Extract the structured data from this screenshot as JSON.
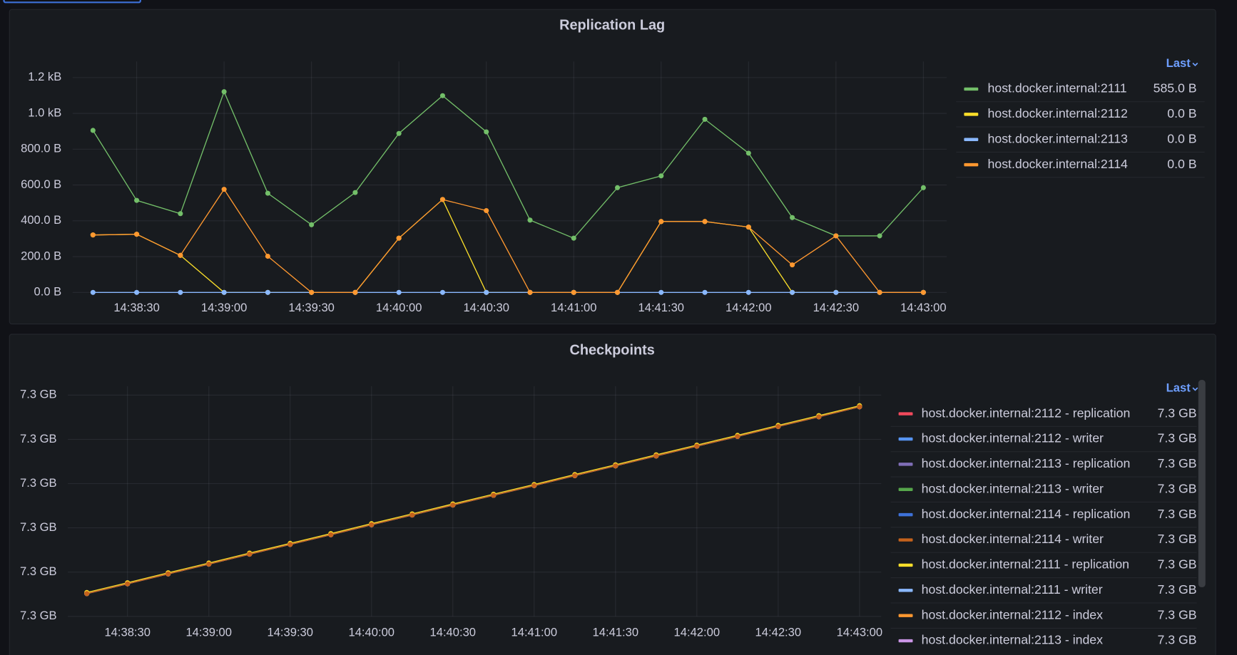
{
  "chart_data": [
    {
      "type": "line",
      "title": "Replication Lag",
      "legend_title": "Last",
      "grid": true,
      "x": [
        "14:38:15",
        "14:38:30",
        "14:38:45",
        "14:39:00",
        "14:39:15",
        "14:39:30",
        "14:39:45",
        "14:40:00",
        "14:40:15",
        "14:40:30",
        "14:40:45",
        "14:41:00",
        "14:41:15",
        "14:41:30",
        "14:41:45",
        "14:42:00",
        "14:42:15",
        "14:42:30",
        "14:42:45",
        "14:43:00"
      ],
      "xlim": [
        "14:38:08",
        "14:43:08"
      ],
      "xticks": [
        "14:38:30",
        "14:39:00",
        "14:39:30",
        "14:40:00",
        "14:40:30",
        "14:41:00",
        "14:41:30",
        "14:42:00",
        "14:42:30",
        "14:43:00"
      ],
      "ylim": [
        0,
        1290
      ],
      "yticks": [
        {
          "value": 0,
          "label": "0.0 B"
        },
        {
          "value": 200,
          "label": "200.0 B"
        },
        {
          "value": 400,
          "label": "400.0 B"
        },
        {
          "value": 600,
          "label": "600.0 B"
        },
        {
          "value": 800,
          "label": "800.0 B"
        },
        {
          "value": 1000,
          "label": "1.0 kB"
        },
        {
          "value": 1200,
          "label": "1.2 kB"
        }
      ],
      "series": [
        {
          "name": "host.docker.internal:2111",
          "color": "#73bf69",
          "legend_value": "585.0 B",
          "values": [
            905,
            514,
            440,
            1121,
            554,
            378,
            558,
            888,
            1099,
            897,
            404,
            303,
            585,
            651,
            967,
            778,
            418,
            316,
            316,
            585
          ]
        },
        {
          "name": "host.docker.internal:2112",
          "color": "#fade2a",
          "legend_value": "0.0 B",
          "values": [
            321,
            325,
            207,
            0,
            0,
            0,
            0,
            303,
            519,
            0,
            0,
            0,
            0,
            396,
            396,
            365,
            0,
            0,
            0,
            0
          ]
        },
        {
          "name": "host.docker.internal:2113",
          "color": "#8ab8ff",
          "legend_value": "0.0 B",
          "values": [
            0,
            0,
            0,
            0,
            0,
            0,
            0,
            0,
            0,
            0,
            0,
            0,
            0,
            0,
            0,
            0,
            0,
            0,
            0,
            0
          ]
        },
        {
          "name": "host.docker.internal:2114",
          "color": "#ff9830",
          "legend_value": "0.0 B",
          "values": [
            321,
            325,
            207,
            576,
            202,
            0,
            0,
            303,
            519,
            457,
            0,
            0,
            0,
            396,
            396,
            365,
            154,
            316,
            0,
            0
          ]
        }
      ]
    },
    {
      "type": "line",
      "title": "Checkpoints",
      "legend_title": "Last",
      "grid": true,
      "x": [
        "14:38:15",
        "14:38:30",
        "14:38:45",
        "14:39:00",
        "14:39:15",
        "14:39:30",
        "14:39:45",
        "14:40:00",
        "14:40:15",
        "14:40:30",
        "14:40:45",
        "14:41:00",
        "14:41:15",
        "14:41:30",
        "14:41:45",
        "14:42:00",
        "14:42:15",
        "14:42:30",
        "14:42:45",
        "14:43:00"
      ],
      "xlim": [
        "14:38:08",
        "14:43:08"
      ],
      "xticks": [
        "14:38:30",
        "14:39:00",
        "14:39:30",
        "14:40:00",
        "14:40:30",
        "14:41:00",
        "14:41:30",
        "14:42:00",
        "14:42:30",
        "14:43:00"
      ],
      "ylim": [
        7.3,
        7.3104
      ],
      "yticks": [
        {
          "value": 7.3,
          "label": "7.3 GB"
        },
        {
          "value": 7.302,
          "label": "7.3 GB"
        },
        {
          "value": 7.304,
          "label": "7.3 GB"
        },
        {
          "value": 7.306,
          "label": "7.3 GB"
        },
        {
          "value": 7.308,
          "label": "7.3 GB"
        },
        {
          "value": 7.31,
          "label": "7.3 GB"
        }
      ],
      "series": [
        {
          "name": "host.docker.internal:2112 - replication",
          "color": "#f2495c",
          "legend_value": "7.3 GB",
          "values": [
            7.30103,
            7.30147,
            7.30192,
            7.30236,
            7.30281,
            7.30325,
            7.30369,
            7.30414,
            7.30458,
            7.30503,
            7.30547,
            7.30591,
            7.30636,
            7.3068,
            7.30725,
            7.30769,
            7.30813,
            7.30858,
            7.30902,
            7.30947
          ]
        },
        {
          "name": "host.docker.internal:2112 - writer",
          "color": "#5794f2",
          "legend_value": "7.3 GB",
          "values": [
            7.30103,
            7.30147,
            7.30192,
            7.30236,
            7.30281,
            7.30325,
            7.30369,
            7.30414,
            7.30458,
            7.30503,
            7.30547,
            7.30591,
            7.30636,
            7.3068,
            7.30725,
            7.30769,
            7.30813,
            7.30858,
            7.30902,
            7.30947
          ]
        },
        {
          "name": "host.docker.internal:2113 - replication",
          "color": "#806eb7",
          "legend_value": "7.3 GB",
          "values": [
            7.30103,
            7.30147,
            7.30192,
            7.30236,
            7.30281,
            7.30325,
            7.30369,
            7.30414,
            7.30458,
            7.30503,
            7.30547,
            7.30591,
            7.30636,
            7.3068,
            7.30725,
            7.30769,
            7.30813,
            7.30858,
            7.30902,
            7.30947
          ]
        },
        {
          "name": "host.docker.internal:2113 - writer",
          "color": "#56a64b",
          "legend_value": "7.3 GB",
          "values": [
            7.30103,
            7.30147,
            7.30192,
            7.30236,
            7.30281,
            7.30325,
            7.30369,
            7.30414,
            7.30458,
            7.30503,
            7.30547,
            7.30591,
            7.30636,
            7.3068,
            7.30725,
            7.30769,
            7.30813,
            7.30858,
            7.30902,
            7.30947
          ]
        },
        {
          "name": "host.docker.internal:2114 - replication",
          "color": "#3d71d9",
          "legend_value": "7.3 GB",
          "values": [
            7.30103,
            7.30147,
            7.30192,
            7.30236,
            7.30281,
            7.30325,
            7.30369,
            7.30414,
            7.30458,
            7.30503,
            7.30547,
            7.30591,
            7.30636,
            7.3068,
            7.30725,
            7.30769,
            7.30813,
            7.30858,
            7.30902,
            7.30947
          ]
        },
        {
          "name": "host.docker.internal:2114 - writer",
          "color": "#c4621c",
          "legend_value": "7.3 GB",
          "values": [
            7.30103,
            7.30147,
            7.30192,
            7.30236,
            7.30281,
            7.30325,
            7.30369,
            7.30414,
            7.30458,
            7.30503,
            7.30547,
            7.30591,
            7.30636,
            7.3068,
            7.30725,
            7.30769,
            7.30813,
            7.30858,
            7.30902,
            7.30947
          ]
        },
        {
          "name": "host.docker.internal:2111 - replication",
          "color": "#fade2a",
          "legend_value": "7.3 GB",
          "values": [
            7.30108,
            7.30152,
            7.30197,
            7.30241,
            7.30286,
            7.3033,
            7.30374,
            7.30419,
            7.30463,
            7.30508,
            7.30552,
            7.30596,
            7.30641,
            7.30685,
            7.3073,
            7.30774,
            7.30818,
            7.30863,
            7.30907,
            7.30952
          ]
        },
        {
          "name": "host.docker.internal:2111 - writer",
          "color": "#8ab8ff",
          "legend_value": "7.3 GB",
          "values": [
            7.30103,
            7.30147,
            7.30192,
            7.30236,
            7.30281,
            7.30325,
            7.30369,
            7.30414,
            7.30458,
            7.30503,
            7.30547,
            7.30591,
            7.30636,
            7.3068,
            7.30725,
            7.30769,
            7.30813,
            7.30858,
            7.30902,
            7.30947
          ]
        },
        {
          "name": "host.docker.internal:2112 - index",
          "color": "#ff9830",
          "legend_value": "7.3 GB",
          "values": [
            7.30103,
            7.30147,
            7.30192,
            7.30236,
            7.30281,
            7.30325,
            7.30369,
            7.30414,
            7.30458,
            7.30503,
            7.30547,
            7.30591,
            7.30636,
            7.3068,
            7.30725,
            7.30769,
            7.30813,
            7.30858,
            7.30902,
            7.30947
          ]
        },
        {
          "name": "host.docker.internal:2113 - index",
          "color": "#ca95e5",
          "legend_value": "7.3 GB",
          "values": [
            7.30103,
            7.30147,
            7.30192,
            7.30236,
            7.30281,
            7.30325,
            7.30369,
            7.30414,
            7.30458,
            7.30503,
            7.30547,
            7.30591,
            7.30636,
            7.3068,
            7.30725,
            7.30769,
            7.30813,
            7.30858,
            7.30902,
            7.30947
          ]
        }
      ]
    }
  ]
}
